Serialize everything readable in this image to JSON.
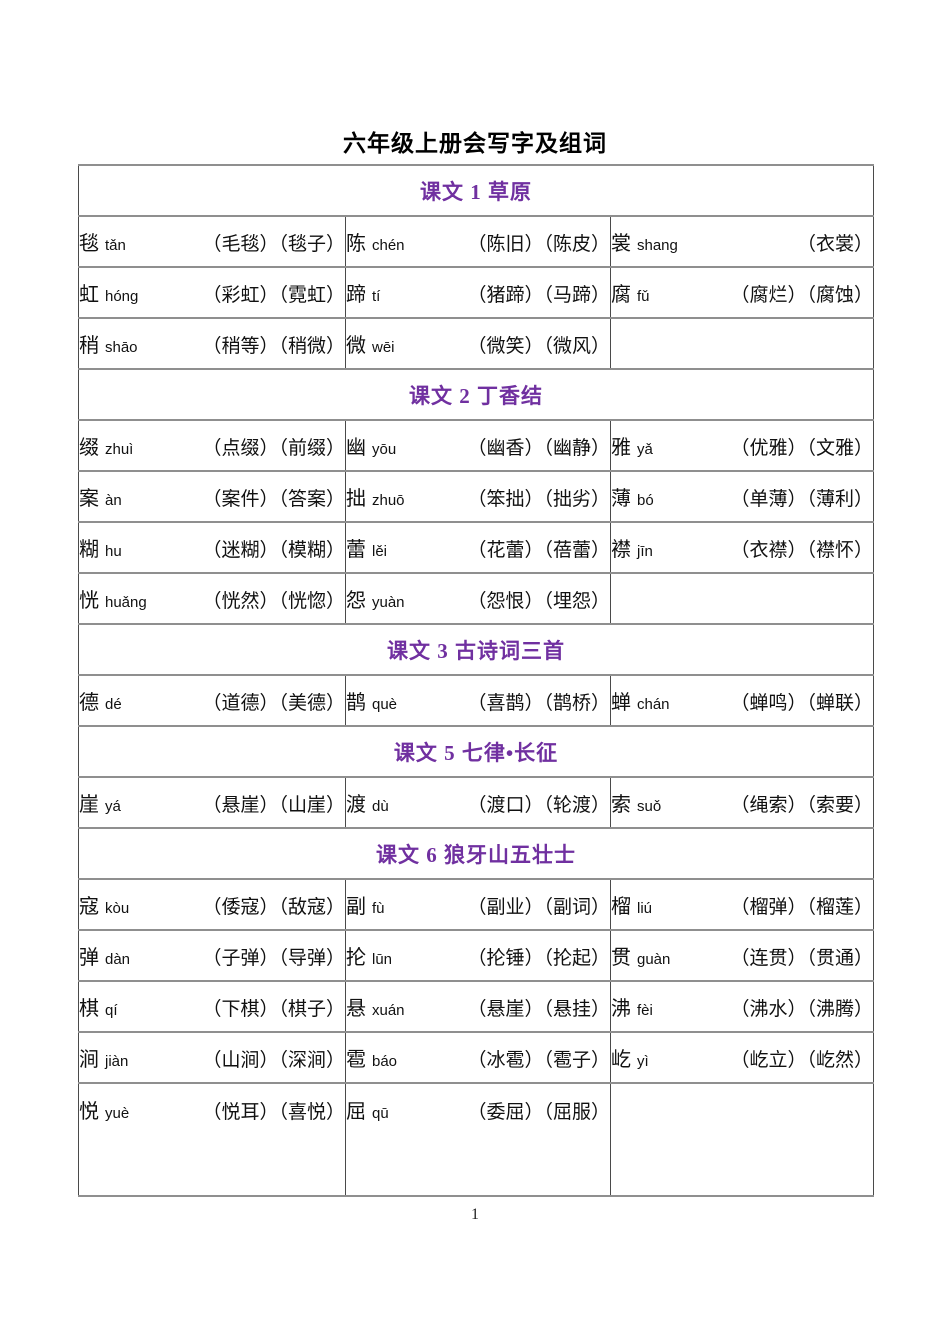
{
  "title": "六年级上册会写字及组词",
  "page_number": "1",
  "colors": {
    "section_header_text": "#7030A0",
    "border_horizontal": "#8f8f8f",
    "border_vertical": "#4a4a4a",
    "body_text": "#111111"
  },
  "table": {
    "columns": 3,
    "sections": [
      {
        "header": "课文 1 草原",
        "rows": [
          [
            {
              "char": "毯",
              "pinyin": "tǎn",
              "words": [
                "毛毯",
                "毯子"
              ]
            },
            {
              "char": "陈",
              "pinyin": "chén",
              "words": [
                "陈旧",
                "陈皮"
              ]
            },
            {
              "char": "裳",
              "pinyin": "shang",
              "words": [
                "衣裳"
              ]
            }
          ],
          [
            {
              "char": "虹",
              "pinyin": "hóng",
              "words": [
                "彩虹",
                "霓虹"
              ]
            },
            {
              "char": "蹄",
              "pinyin": "tí",
              "words": [
                "猪蹄",
                "马蹄"
              ]
            },
            {
              "char": "腐",
              "pinyin": "fǔ",
              "words": [
                "腐烂",
                "腐蚀"
              ]
            }
          ],
          [
            {
              "char": "稍",
              "pinyin": "shāo",
              "words": [
                "稍等",
                "稍微"
              ]
            },
            {
              "char": "微",
              "pinyin": "wēi",
              "words": [
                "微笑",
                "微风"
              ]
            },
            null
          ]
        ]
      },
      {
        "header": "课文 2 丁香结",
        "rows": [
          [
            {
              "char": "缀",
              "pinyin": "zhuì",
              "words": [
                "点缀",
                "前缀"
              ]
            },
            {
              "char": "幽",
              "pinyin": "yōu",
              "words": [
                "幽香",
                "幽静"
              ]
            },
            {
              "char": "雅",
              "pinyin": "yǎ",
              "words": [
                "优雅",
                "文雅"
              ]
            }
          ],
          [
            {
              "char": "案",
              "pinyin": "àn",
              "words": [
                "案件",
                "答案"
              ]
            },
            {
              "char": "拙",
              "pinyin": "zhuō",
              "words": [
                "笨拙",
                "拙劣"
              ]
            },
            {
              "char": "薄",
              "pinyin": "bó",
              "words": [
                "单薄",
                "薄利"
              ]
            }
          ],
          [
            {
              "char": "糊",
              "pinyin": "hu",
              "words": [
                "迷糊",
                "模糊"
              ]
            },
            {
              "char": "蕾",
              "pinyin": "lěi",
              "words": [
                "花蕾",
                "蓓蕾"
              ]
            },
            {
              "char": "襟",
              "pinyin": "jīn",
              "words": [
                "衣襟",
                "襟怀"
              ]
            }
          ],
          [
            {
              "char": "恍",
              "pinyin": "huǎng",
              "words": [
                "恍然",
                "恍惚"
              ]
            },
            {
              "char": "怨",
              "pinyin": "yuàn",
              "words": [
                "怨恨",
                "埋怨"
              ]
            },
            null
          ]
        ]
      },
      {
        "header": "课文 3 古诗词三首",
        "rows": [
          [
            {
              "char": "德",
              "pinyin": "dé",
              "words": [
                "道德",
                "美德"
              ]
            },
            {
              "char": "鹊",
              "pinyin": "què",
              "words": [
                "喜鹊",
                "鹊桥"
              ]
            },
            {
              "char": "蝉",
              "pinyin": "chán",
              "words": [
                "蝉鸣",
                "蝉联"
              ]
            }
          ]
        ]
      },
      {
        "header": "课文 5 七律•长征",
        "rows": [
          [
            {
              "char": "崖",
              "pinyin": "yá",
              "words": [
                "悬崖",
                "山崖"
              ]
            },
            {
              "char": "渡",
              "pinyin": "dù",
              "words": [
                "渡口",
                "轮渡"
              ]
            },
            {
              "char": "索",
              "pinyin": "suǒ",
              "words": [
                "绳索",
                "索要"
              ]
            }
          ]
        ]
      },
      {
        "header": "课文 6 狼牙山五壮士",
        "rows": [
          [
            {
              "char": "寇",
              "pinyin": "kòu",
              "words": [
                "倭寇",
                "敌寇"
              ]
            },
            {
              "char": "副",
              "pinyin": "fù",
              "words": [
                "副业",
                "副词"
              ]
            },
            {
              "char": "榴",
              "pinyin": "liú",
              "words": [
                "榴弹",
                "榴莲"
              ]
            }
          ],
          [
            {
              "char": "弹",
              "pinyin": "dàn",
              "words": [
                "子弹",
                "导弹"
              ]
            },
            {
              "char": "抡",
              "pinyin": "lūn",
              "words": [
                "抡锤",
                "抡起"
              ]
            },
            {
              "char": "贯",
              "pinyin": "guàn",
              "words": [
                "连贯",
                "贯通"
              ]
            }
          ],
          [
            {
              "char": "棋",
              "pinyin": "qí",
              "words": [
                "下棋",
                "棋子"
              ]
            },
            {
              "char": "悬",
              "pinyin": "xuán",
              "words": [
                "悬崖",
                "悬挂"
              ]
            },
            {
              "char": "沸",
              "pinyin": "fèi",
              "words": [
                "沸水",
                "沸腾"
              ]
            }
          ],
          [
            {
              "char": "涧",
              "pinyin": "jiàn",
              "words": [
                "山涧",
                "深涧"
              ]
            },
            {
              "char": "雹",
              "pinyin": "báo",
              "words": [
                "冰雹",
                "雹子"
              ]
            },
            {
              "char": "屹",
              "pinyin": "yì",
              "words": [
                "屹立",
                "屹然"
              ]
            }
          ],
          [
            {
              "char": "悦",
              "pinyin": "yuè",
              "words": [
                "悦耳",
                "喜悦"
              ]
            },
            {
              "char": "屈",
              "pinyin": "qū",
              "words": [
                "委屈",
                "屈服"
              ]
            },
            null
          ]
        ]
      }
    ]
  }
}
